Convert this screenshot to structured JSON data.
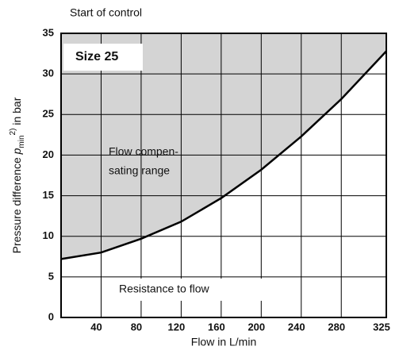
{
  "chart_data": {
    "type": "line",
    "title": "Start of control",
    "xlabel": "Flow in L/min",
    "ylabel_parts": [
      "Pressure difference ",
      "p",
      "min",
      "2)",
      " in bar"
    ],
    "annotations": [
      "Size 25",
      "Flow compen-",
      "sating range",
      "Resistance to flow"
    ],
    "xlim": [
      0,
      325
    ],
    "ylim": [
      0,
      35
    ],
    "xticks": [
      40,
      80,
      120,
      160,
      200,
      240,
      280,
      325
    ],
    "yticks": [
      0,
      5,
      10,
      15,
      20,
      25,
      30,
      35
    ],
    "grid": true,
    "fill_color": "#d4d4d4",
    "series": [
      {
        "color": "#000000",
        "x": [
          0,
          40,
          80,
          120,
          160,
          200,
          240,
          280,
          325
        ],
        "values": [
          7.2,
          8,
          9.7,
          11.8,
          14.7,
          18.2,
          22.3,
          26.9,
          32.8
        ]
      }
    ]
  }
}
